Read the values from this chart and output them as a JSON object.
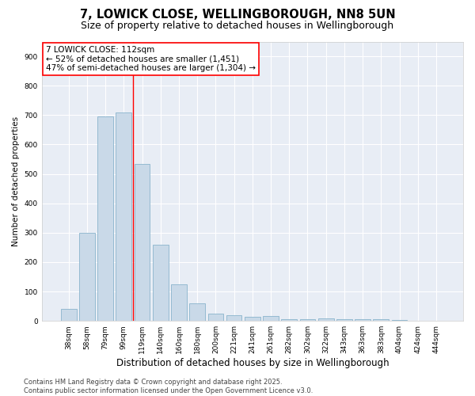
{
  "title1": "7, LOWICK CLOSE, WELLINGBOROUGH, NN8 5UN",
  "title2": "Size of property relative to detached houses in Wellingborough",
  "xlabel": "Distribution of detached houses by size in Wellingborough",
  "ylabel": "Number of detached properties",
  "categories": [
    "38sqm",
    "58sqm",
    "79sqm",
    "99sqm",
    "119sqm",
    "140sqm",
    "160sqm",
    "180sqm",
    "200sqm",
    "221sqm",
    "241sqm",
    "261sqm",
    "282sqm",
    "302sqm",
    "322sqm",
    "343sqm",
    "363sqm",
    "383sqm",
    "404sqm",
    "424sqm",
    "444sqm"
  ],
  "values": [
    42,
    300,
    695,
    710,
    535,
    260,
    125,
    60,
    25,
    20,
    15,
    18,
    5,
    5,
    8,
    5,
    5,
    5,
    3,
    1,
    1
  ],
  "bar_color": "#c9d9e8",
  "bar_edge_color": "#8ab4cc",
  "bar_width": 0.85,
  "property_line_x": 3.5,
  "property_line_color": "red",
  "annotation_line1": "7 LOWICK CLOSE: 112sqm",
  "annotation_line2": "← 52% of detached houses are smaller (1,451)",
  "annotation_line3": "47% of semi-detached houses are larger (1,304) →",
  "ylim": [
    0,
    950
  ],
  "yticks": [
    0,
    100,
    200,
    300,
    400,
    500,
    600,
    700,
    800,
    900
  ],
  "bg_color": "#e8edf5",
  "grid_color": "#ffffff",
  "footer_text": "Contains HM Land Registry data © Crown copyright and database right 2025.\nContains public sector information licensed under the Open Government Licence v3.0.",
  "title1_fontsize": 10.5,
  "title2_fontsize": 9,
  "xlabel_fontsize": 8.5,
  "ylabel_fontsize": 7.5,
  "tick_fontsize": 6.5,
  "annotation_fontsize": 7.5,
  "footer_fontsize": 6
}
